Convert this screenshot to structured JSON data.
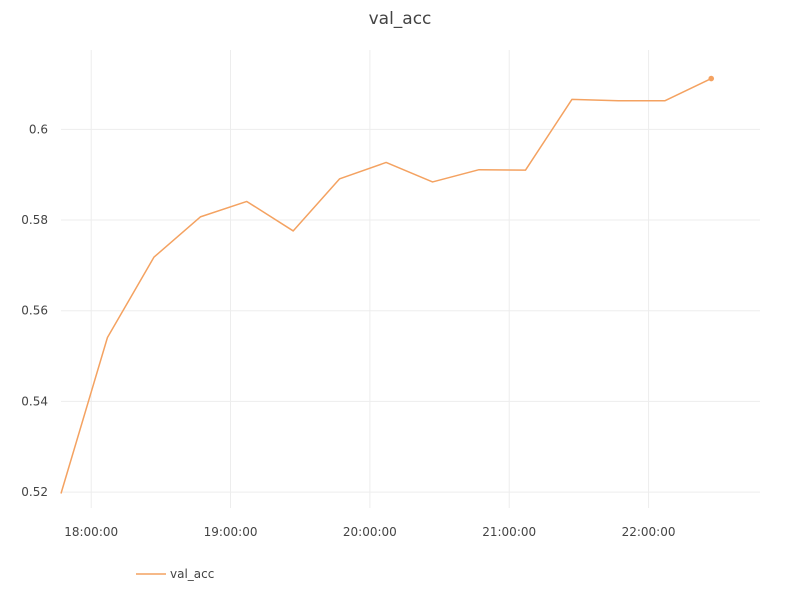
{
  "chart_data": {
    "type": "line",
    "title": "val_acc",
    "xlabel": "",
    "ylabel": "",
    "grid": true,
    "legend_position": "bottom-left",
    "x_ticks": [
      "18:00:00",
      "19:00:00",
      "20:00:00",
      "21:00:00",
      "22:00:00"
    ],
    "y_ticks": [
      0.52,
      0.54,
      0.56,
      0.58,
      0.6
    ],
    "y_tick_labels": [
      "0.52",
      "0.54",
      "0.56",
      "0.58",
      "0.6"
    ],
    "xlim": [
      "17:47:00",
      "22:48:00"
    ],
    "ylim": [
      0.5165,
      0.6175
    ],
    "series": [
      {
        "name": "val_acc",
        "color": "#f4a261",
        "x": [
          "17:47:00",
          "18:07:00",
          "18:27:00",
          "18:47:00",
          "19:07:00",
          "19:27:00",
          "19:47:00",
          "20:07:00",
          "20:27:00",
          "20:47:00",
          "21:07:00",
          "21:27:00",
          "21:47:00",
          "22:07:00",
          "22:27:00"
        ],
        "values": [
          0.5197,
          0.5541,
          0.5718,
          0.5807,
          0.5841,
          0.5776,
          0.5891,
          0.5927,
          0.5884,
          0.5911,
          0.591,
          0.6066,
          0.6063,
          0.6063,
          0.6112
        ]
      }
    ]
  }
}
